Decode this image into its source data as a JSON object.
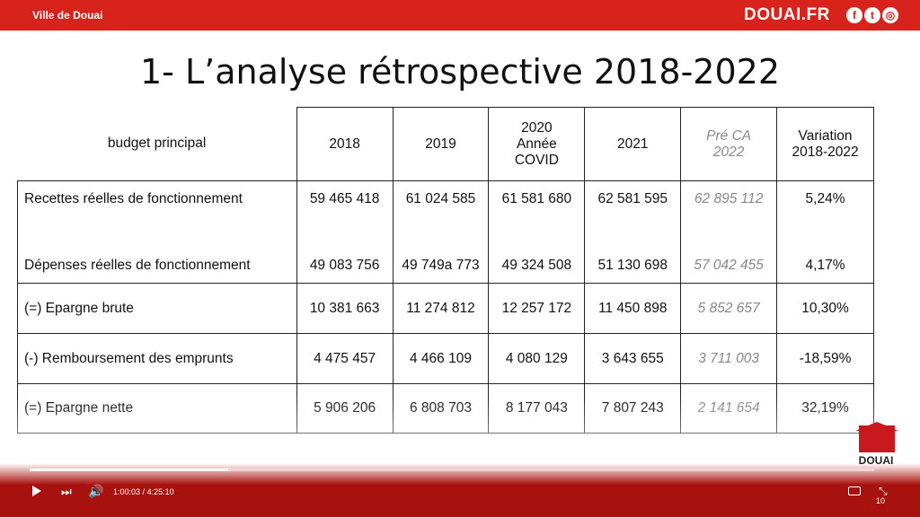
{
  "header": {
    "city_label": "Ville de Douai",
    "site_label": "DOUAI.FR",
    "social_icons": [
      "facebook-icon",
      "twitter-icon",
      "instagram-icon"
    ],
    "accent_color": "#d8221c"
  },
  "slide": {
    "title": "1- L’analyse rétrospective 2018-2022",
    "table": {
      "headers": {
        "label": "budget principal",
        "y2018": "2018",
        "y2019": "2019",
        "y2020_line1": "2020",
        "y2020_line2": "Année",
        "y2020_line3": "COVID",
        "y2021": "2021",
        "pre_line1": "Pré CA",
        "pre_line2": "2022",
        "var_line1": "Variation",
        "var_line2": "2018-2022"
      },
      "rows": [
        {
          "label": "Recettes réelles de fonctionnement",
          "v2018": "59 465 418",
          "v2019": "61 024 585",
          "v2020": "61 581 680",
          "v2021": "62 581 595",
          "pre": "62 895 112",
          "var": "5,24%"
        },
        {
          "label": "Dépenses réelles de fonctionnement",
          "v2018": "49 083 756",
          "v2019": "49 749a 773",
          "v2020": "49 324 508",
          "v2021": "51 130 698",
          "pre": "57 042 455",
          "var": "4,17%"
        },
        {
          "label": "(=) Epargne brute",
          "v2018": "10 381 663",
          "v2019": "11 274 812",
          "v2020": "12 257 172",
          "v2021": "11 450 898",
          "pre": "5 852 657",
          "var": "10,30%"
        },
        {
          "label": "(-) Remboursement des emprunts",
          "v2018": "4 475 457",
          "v2019": "4 466 109",
          "v2020": "4 080 129",
          "v2021": "3 643 655",
          "pre": "3 711 003",
          "var": "-18,59%"
        },
        {
          "label": "(=) Epargne nette",
          "v2018": "5 906 206",
          "v2019": "6 808 703",
          "v2020": "8 177 043",
          "v2021": "7 807 243",
          "pre": "2 141 654",
          "var": "32,19%"
        }
      ]
    }
  },
  "logo": {
    "name": "DOUAI"
  },
  "player": {
    "current_time": "1:00:03",
    "separator": "/",
    "duration": "4:25:10",
    "progress_fraction": 0.235,
    "page_number": "10"
  }
}
